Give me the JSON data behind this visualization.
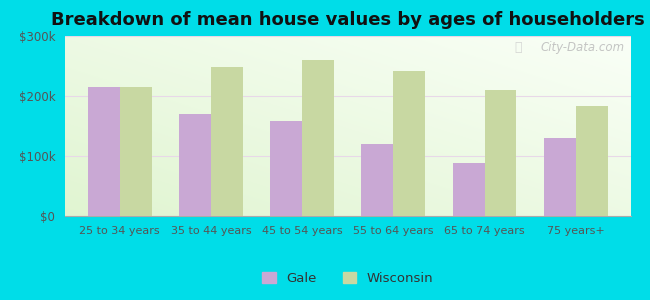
{
  "title": "Breakdown of mean house values by ages of householders",
  "categories": [
    "25 to 34 years",
    "35 to 44 years",
    "45 to 54 years",
    "55 to 64 years",
    "65 to 74 years",
    "75 years+"
  ],
  "gale_values": [
    215000,
    170000,
    158000,
    120000,
    88000,
    130000
  ],
  "wisconsin_values": [
    215000,
    248000,
    260000,
    242000,
    210000,
    183000
  ],
  "gale_color": "#c9a8d4",
  "wisconsin_color": "#c8d8a2",
  "background_outer": "#00dde8",
  "ylim": [
    0,
    300000
  ],
  "yticks": [
    0,
    100000,
    200000,
    300000
  ],
  "ytick_labels": [
    "$0",
    "$100k",
    "$200k",
    "$300k"
  ],
  "title_fontsize": 13,
  "legend_labels": [
    "Gale",
    "Wisconsin"
  ],
  "bar_width": 0.35,
  "figsize": [
    6.5,
    3.0
  ],
  "dpi": 100,
  "grid_color": "#ddeecc",
  "watermark": "City-Data.com"
}
